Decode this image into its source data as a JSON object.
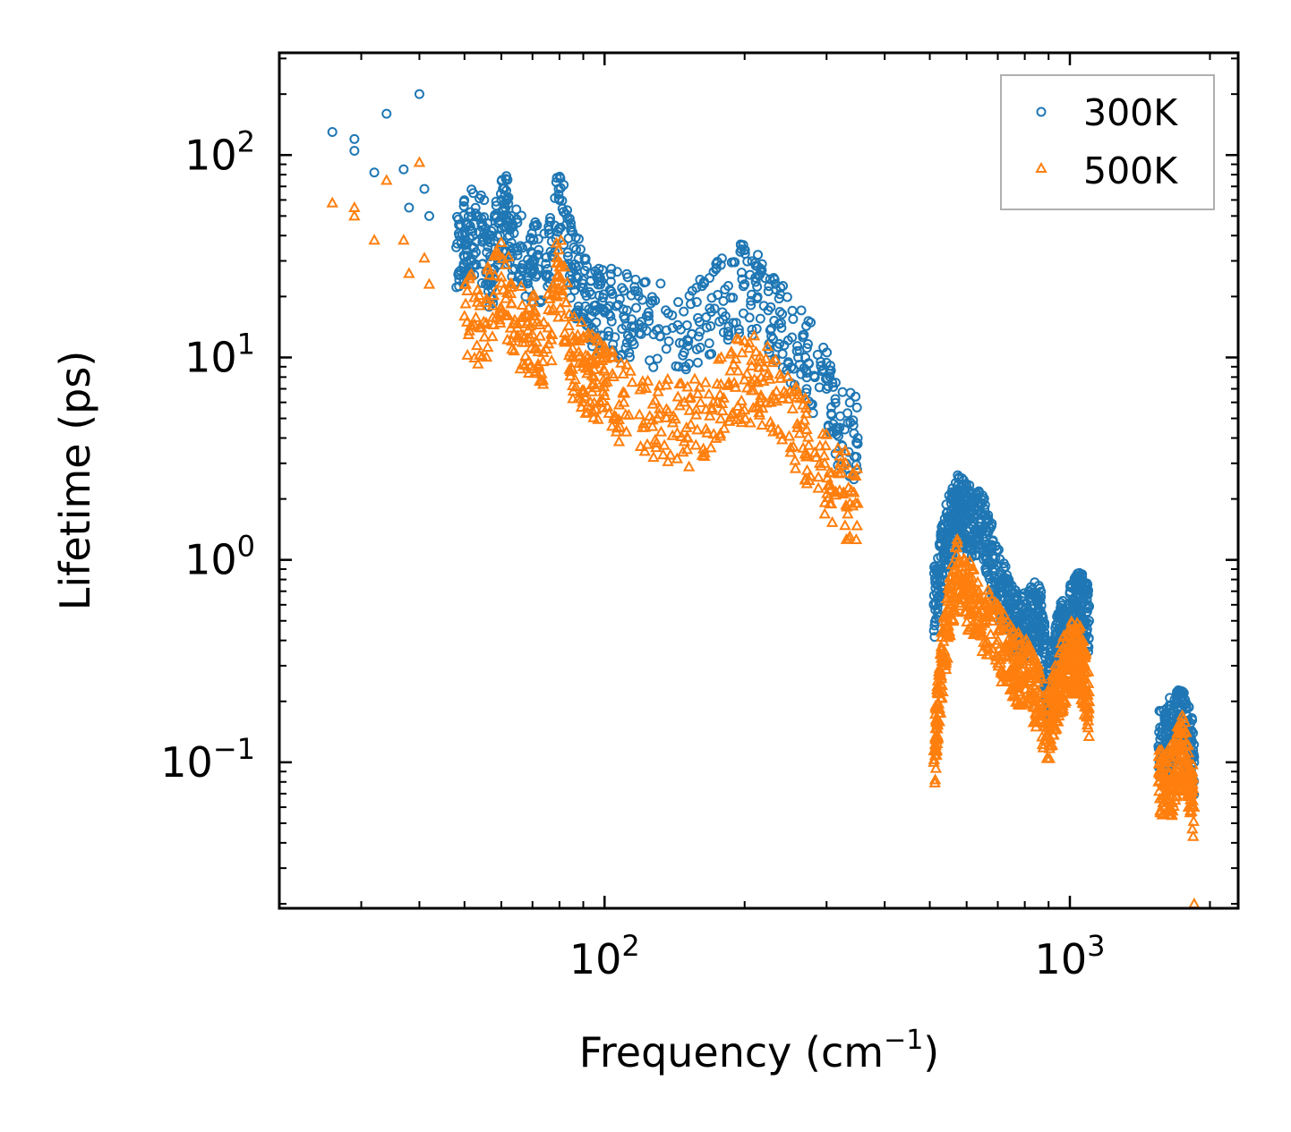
{
  "chart_data": {
    "type": "scatter",
    "title": "",
    "xlabel": "Frequency (cm",
    "xlabel_sup": "−1",
    "xlabel_end": ")",
    "ylabel": "Lifetime (ps)",
    "xscale": "log",
    "yscale": "log",
    "xlim": [
      20,
      2300
    ],
    "ylim": [
      0.019,
      320
    ],
    "x_ticks": [
      {
        "value": 100,
        "base": "10",
        "exp": "2"
      },
      {
        "value": 1000,
        "base": "10",
        "exp": "3"
      }
    ],
    "y_ticks": [
      {
        "value": 100,
        "base": "10",
        "exp": "2"
      },
      {
        "value": 10,
        "base": "10",
        "exp": "1"
      },
      {
        "value": 1,
        "base": "10",
        "exp": "0"
      },
      {
        "value": 0.1,
        "base": "10",
        "exp": "−1"
      }
    ],
    "legend_position": "top-right",
    "series": [
      {
        "name": "300K",
        "color": "#1f77b4",
        "marker": "circle",
        "anchors": [
          [
            26,
            130
          ],
          [
            29,
            120
          ],
          [
            29,
            105
          ],
          [
            32,
            82
          ],
          [
            34,
            160
          ],
          [
            37,
            85
          ],
          [
            38,
            55
          ],
          [
            40,
            200
          ],
          [
            41,
            68
          ],
          [
            42,
            50
          ],
          [
            48,
            35
          ],
          [
            50,
            38
          ],
          [
            52,
            42
          ],
          [
            55,
            38
          ],
          [
            57,
            26
          ],
          [
            60,
            60
          ],
          [
            62,
            45
          ],
          [
            65,
            32
          ],
          [
            70,
            30
          ],
          [
            75,
            25
          ],
          [
            80,
            60
          ],
          [
            85,
            28
          ],
          [
            90,
            22
          ],
          [
            95,
            18
          ],
          [
            100,
            17
          ],
          [
            110,
            16
          ],
          [
            120,
            15
          ],
          [
            140,
            14
          ],
          [
            160,
            15
          ],
          [
            180,
            19
          ],
          [
            200,
            23
          ],
          [
            220,
            18
          ],
          [
            240,
            14
          ],
          [
            270,
            10
          ],
          [
            300,
            7
          ],
          [
            320,
            4.5
          ],
          [
            350,
            4
          ],
          [
            510,
            0.6
          ],
          [
            540,
            1.2
          ],
          [
            570,
            1.8
          ],
          [
            600,
            1.6
          ],
          [
            650,
            1.4
          ],
          [
            700,
            0.8
          ],
          [
            750,
            0.5
          ],
          [
            800,
            0.45
          ],
          [
            860,
            0.55
          ],
          [
            900,
            0.22
          ],
          [
            950,
            0.4
          ],
          [
            1000,
            0.5
          ],
          [
            1050,
            0.6
          ],
          [
            1100,
            0.5
          ],
          [
            1550,
            0.12
          ],
          [
            1650,
            0.14
          ],
          [
            1750,
            0.16
          ],
          [
            1850,
            0.1
          ]
        ]
      },
      {
        "name": "500K",
        "color": "#ff7f0e",
        "marker": "triangle",
        "anchors": [
          [
            26,
            58
          ],
          [
            29,
            55
          ],
          [
            29,
            50
          ],
          [
            32,
            38
          ],
          [
            34,
            75
          ],
          [
            37,
            38
          ],
          [
            38,
            26
          ],
          [
            40,
            92
          ],
          [
            41,
            31
          ],
          [
            42,
            23
          ],
          [
            50,
            16
          ],
          [
            55,
            15
          ],
          [
            60,
            25
          ],
          [
            65,
            14
          ],
          [
            70,
            13
          ],
          [
            75,
            11
          ],
          [
            80,
            28
          ],
          [
            85,
            10
          ],
          [
            90,
            9
          ],
          [
            95,
            8
          ],
          [
            100,
            7.5
          ],
          [
            110,
            6
          ],
          [
            130,
            5
          ],
          [
            150,
            4.5
          ],
          [
            170,
            5.5
          ],
          [
            190,
            7.5
          ],
          [
            210,
            7.8
          ],
          [
            230,
            6.5
          ],
          [
            260,
            4.5
          ],
          [
            290,
            3
          ],
          [
            320,
            2.2
          ],
          [
            350,
            1.9
          ],
          [
            510,
            0.1
          ],
          [
            530,
            0.3
          ],
          [
            570,
            0.9
          ],
          [
            620,
            0.6
          ],
          [
            700,
            0.4
          ],
          [
            760,
            0.3
          ],
          [
            820,
            0.26
          ],
          [
            900,
            0.15
          ],
          [
            950,
            0.25
          ],
          [
            1000,
            0.33
          ],
          [
            1050,
            0.32
          ],
          [
            1100,
            0.2
          ],
          [
            1550,
            0.08
          ],
          [
            1650,
            0.08
          ],
          [
            1750,
            0.12
          ],
          [
            1850,
            0.06
          ],
          [
            1850,
            0.02
          ]
        ]
      }
    ]
  }
}
